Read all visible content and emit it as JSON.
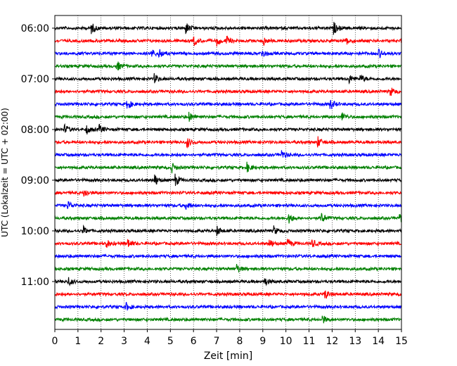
{
  "chart_data": {
    "type": "line",
    "title": "",
    "xlabel": "Zeit  [min]",
    "ylabel": "UTC (Lokalzeit = UTC + 02:00)",
    "xlim": [
      0,
      15
    ],
    "x_ticks": [
      "0",
      "1",
      "2",
      "3",
      "4",
      "5",
      "6",
      "7",
      "8",
      "9",
      "10",
      "11",
      "12",
      "13",
      "14",
      "15"
    ],
    "y_ticks": [
      "06:00",
      "07:00",
      "08:00",
      "09:00",
      "10:00",
      "11:00"
    ],
    "grid": "vertical dotted",
    "trace_interval_minutes": 15,
    "colors": [
      "#000000",
      "#ff0000",
      "#0000ff",
      "#008000"
    ],
    "traces": [
      {
        "start": "06:00",
        "color": "#000000",
        "events": [
          1.55,
          5.65,
          12.05
        ]
      },
      {
        "start": "06:15",
        "color": "#ff0000",
        "events": [
          6.0,
          7.0,
          7.4,
          9.0,
          12.6
        ]
      },
      {
        "start": "06:30",
        "color": "#0000ff",
        "events": [
          4.15,
          4.5,
          8.95,
          14.0
        ]
      },
      {
        "start": "06:45",
        "color": "#008000",
        "events": [
          2.65
        ]
      },
      {
        "start": "07:00",
        "color": "#000000",
        "events": [
          4.3,
          12.7,
          13.2
        ]
      },
      {
        "start": "07:15",
        "color": "#ff0000",
        "events": [
          14.5
        ]
      },
      {
        "start": "07:30",
        "color": "#0000ff",
        "events": [
          3.1,
          11.9
        ]
      },
      {
        "start": "07:45",
        "color": "#008000",
        "events": [
          5.8,
          12.4
        ]
      },
      {
        "start": "08:00",
        "color": "#000000",
        "events": [
          0.4,
          1.35,
          1.9
        ]
      },
      {
        "start": "08:15",
        "color": "#ff0000",
        "events": [
          5.7,
          11.35
        ]
      },
      {
        "start": "08:30",
        "color": "#0000ff",
        "events": [
          9.8
        ]
      },
      {
        "start": "08:45",
        "color": "#008000",
        "events": [
          5.05,
          8.3
        ]
      },
      {
        "start": "09:00",
        "color": "#000000",
        "events": [
          4.3,
          5.2
        ]
      },
      {
        "start": "09:15",
        "color": "#ff0000",
        "events": [
          1.25
        ]
      },
      {
        "start": "09:30",
        "color": "#0000ff",
        "events": [
          0.55,
          5.65
        ]
      },
      {
        "start": "09:45",
        "color": "#008000",
        "events": [
          10.1,
          11.5,
          14.9
        ]
      },
      {
        "start": "10:00",
        "color": "#000000",
        "events": [
          1.2,
          7.0,
          9.45
        ]
      },
      {
        "start": "10:15",
        "color": "#ff0000",
        "events": [
          2.2,
          3.15,
          9.25,
          10.05,
          11.1
        ]
      },
      {
        "start": "10:30",
        "color": "#0000ff",
        "events": []
      },
      {
        "start": "10:45",
        "color": "#008000",
        "events": [
          7.85
        ]
      },
      {
        "start": "11:00",
        "color": "#000000",
        "events": [
          0.55,
          9.05
        ]
      },
      {
        "start": "11:15",
        "color": "#ff0000",
        "events": [
          11.65
        ]
      },
      {
        "start": "11:30",
        "color": "#0000ff",
        "events": [
          3.05
        ]
      },
      {
        "start": "11:45",
        "color": "#008000",
        "events": [
          11.55
        ]
      }
    ]
  }
}
